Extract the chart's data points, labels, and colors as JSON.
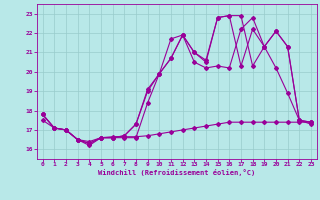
{
  "xlabel": "Windchill (Refroidissement éolien,°C)",
  "xlim": [
    -0.5,
    23.5
  ],
  "ylim": [
    15.5,
    23.5
  ],
  "yticks": [
    16,
    17,
    18,
    19,
    20,
    21,
    22,
    23
  ],
  "xticks": [
    0,
    1,
    2,
    3,
    4,
    5,
    6,
    7,
    8,
    9,
    10,
    11,
    12,
    13,
    14,
    15,
    16,
    17,
    18,
    19,
    20,
    21,
    22,
    23
  ],
  "bg_color": "#b8e8e8",
  "line_color": "#990099",
  "grid_color": "#99cccc",
  "line1_x": [
    0,
    1,
    2,
    3,
    4,
    5,
    6,
    7,
    8,
    9,
    10,
    11,
    12,
    13,
    14,
    15,
    16,
    17,
    18,
    19,
    20,
    21,
    22,
    23
  ],
  "line1_y": [
    17.8,
    17.1,
    17.0,
    16.5,
    16.2,
    16.6,
    16.6,
    16.6,
    16.6,
    18.4,
    19.9,
    21.7,
    21.9,
    20.5,
    20.2,
    20.3,
    20.2,
    22.2,
    22.8,
    21.3,
    20.2,
    18.9,
    17.5,
    17.3
  ],
  "line2_x": [
    0,
    1,
    2,
    3,
    4,
    5,
    6,
    7,
    8,
    9,
    10,
    11,
    12,
    13,
    14,
    15,
    16,
    17,
    18,
    19,
    20,
    21,
    22,
    23
  ],
  "line2_y": [
    17.8,
    17.1,
    17.0,
    16.5,
    16.3,
    16.6,
    16.6,
    16.7,
    17.3,
    19.1,
    19.9,
    20.7,
    21.9,
    21.0,
    20.5,
    22.8,
    22.9,
    20.3,
    22.2,
    21.3,
    22.1,
    21.3,
    17.5,
    17.4
  ],
  "line3_x": [
    0,
    1,
    2,
    3,
    4,
    5,
    6,
    7,
    8,
    9,
    10,
    11,
    12,
    13,
    14,
    15,
    16,
    17,
    18,
    19,
    20,
    21,
    22,
    23
  ],
  "line3_y": [
    17.8,
    17.1,
    17.0,
    16.5,
    16.3,
    16.6,
    16.6,
    16.7,
    17.3,
    19.0,
    19.9,
    20.7,
    21.9,
    21.0,
    20.6,
    22.8,
    22.9,
    22.9,
    20.3,
    21.3,
    22.1,
    21.3,
    17.5,
    17.4
  ],
  "line4_x": [
    0,
    1,
    2,
    3,
    4,
    5,
    6,
    7,
    8,
    9,
    10,
    11,
    12,
    13,
    14,
    15,
    16,
    17,
    18,
    19,
    20,
    21,
    22,
    23
  ],
  "line4_y": [
    17.5,
    17.1,
    17.0,
    16.5,
    16.4,
    16.6,
    16.65,
    16.65,
    16.65,
    16.7,
    16.8,
    16.9,
    17.0,
    17.1,
    17.2,
    17.3,
    17.4,
    17.4,
    17.4,
    17.4,
    17.4,
    17.4,
    17.4,
    17.4
  ]
}
